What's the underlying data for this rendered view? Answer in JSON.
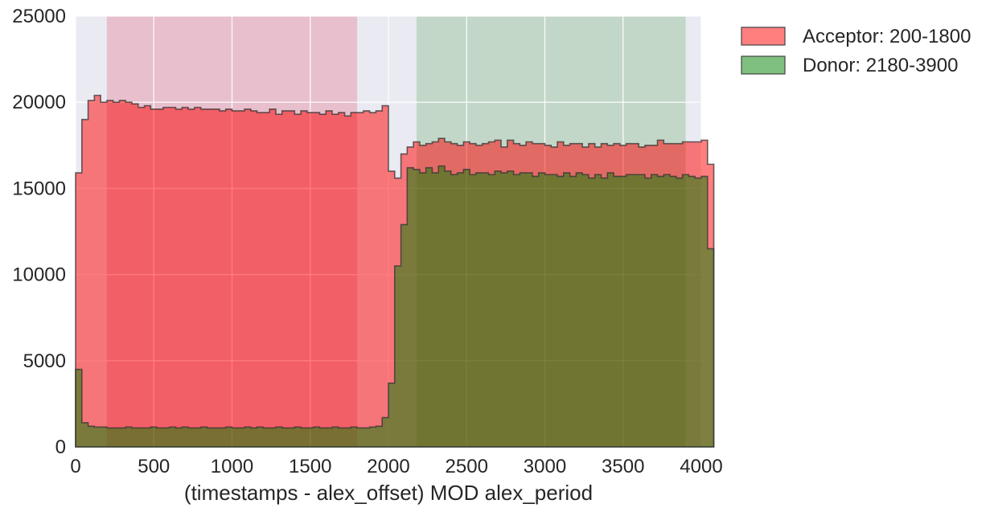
{
  "chart_data": {
    "type": "histogram",
    "xlabel": "(timestamps - alex_offset) MOD alex_period",
    "ylabel": "",
    "xlim": [
      0,
      4000
    ],
    "ylim": [
      0,
      25000
    ],
    "x_ticks": [
      0,
      500,
      1000,
      1500,
      2000,
      2500,
      3000,
      3500,
      4000
    ],
    "y_ticks": [
      0,
      5000,
      10000,
      15000,
      20000,
      25000
    ],
    "grid": true,
    "background_color": "#EAEAF2",
    "legend_position": "outside-top-right",
    "bin_width": 40,
    "bin_start": 0,
    "bands": [
      {
        "name": "Acceptor: 200-1800",
        "range": [
          200,
          1800
        ],
        "color": "#DC143C",
        "alpha": 0.2
      },
      {
        "name": "Donor: 2180-3900",
        "range": [
          2180,
          3900
        ],
        "color": "#228B22",
        "alpha": 0.2
      }
    ],
    "legend": [
      {
        "label": "Acceptor: 200-1800",
        "color": "#FF7F7F"
      },
      {
        "label": "Donor: 2180-3900",
        "color": "#7FBF7F"
      }
    ],
    "series": [
      {
        "fill": "#FF0000",
        "alpha": 0.5,
        "values": [
          15900,
          19000,
          20100,
          20400,
          20000,
          20100,
          20000,
          20100,
          20000,
          19900,
          19700,
          19800,
          19600,
          19600,
          19700,
          19700,
          19600,
          19700,
          19600,
          19700,
          19600,
          19600,
          19600,
          19500,
          19600,
          19500,
          19500,
          19600,
          19500,
          19400,
          19400,
          19600,
          19300,
          19500,
          19500,
          19300,
          19500,
          19400,
          19400,
          19300,
          19500,
          19300,
          19400,
          19200,
          19400,
          19400,
          19500,
          19400,
          19500,
          19800,
          16000,
          15600,
          17000,
          17400,
          17700,
          17500,
          17600,
          17700,
          17900,
          17700,
          17600,
          17500,
          17700,
          17600,
          17500,
          17600,
          17700,
          17800,
          17400,
          17800,
          17600,
          17500,
          17700,
          17600,
          17600,
          17500,
          17400,
          17700,
          17500,
          17600,
          17600,
          17400,
          17600,
          17400,
          17600,
          17500,
          17600,
          17500,
          17600,
          17600,
          17400,
          17500,
          17500,
          17800,
          17600,
          17600,
          17600,
          17700,
          17700,
          17700,
          17800,
          16400
        ]
      },
      {
        "fill": "#008000",
        "alpha": 0.5,
        "values": [
          4500,
          1400,
          1200,
          1150,
          1150,
          1100,
          1100,
          1100,
          1150,
          1100,
          1100,
          1100,
          1150,
          1100,
          1100,
          1150,
          1100,
          1150,
          1100,
          1100,
          1150,
          1100,
          1100,
          1100,
          1150,
          1100,
          1100,
          1150,
          1100,
          1150,
          1100,
          1100,
          1150,
          1100,
          1100,
          1150,
          1100,
          1100,
          1150,
          1100,
          1100,
          1150,
          1100,
          1100,
          1150,
          1100,
          1100,
          1150,
          1200,
          1700,
          3700,
          10500,
          12900,
          16200,
          16100,
          15900,
          16200,
          15900,
          16300,
          16000,
          15800,
          15900,
          16100,
          15800,
          15900,
          15900,
          15800,
          16000,
          15900,
          16000,
          15800,
          15900,
          15900,
          15700,
          15900,
          15800,
          15800,
          15700,
          15900,
          15700,
          15900,
          15800,
          15600,
          15800,
          15600,
          15900,
          15700,
          15700,
          15800,
          15800,
          15800,
          15600,
          15800,
          15700,
          15800,
          15700,
          15600,
          15800,
          15700,
          15600,
          15700,
          11500
        ]
      }
    ]
  }
}
